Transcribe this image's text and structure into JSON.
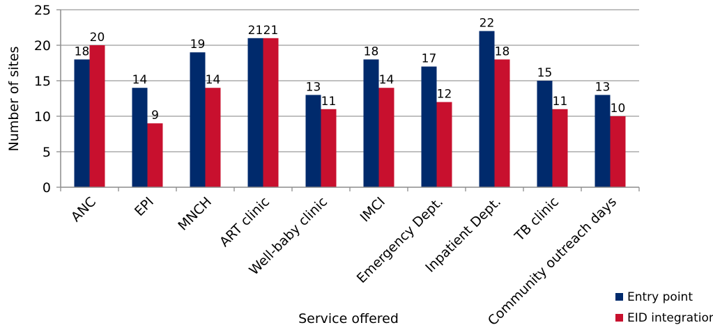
{
  "chart_data": {
    "type": "bar",
    "title": "",
    "xlabel": "Service offered",
    "ylabel": "Number of sites",
    "ylim": [
      0,
      25
    ],
    "yticks": [
      0,
      5,
      10,
      15,
      20,
      25
    ],
    "grid": true,
    "legend_position": "bottom-right",
    "categories": [
      "ANC",
      "EPI",
      "MNCH",
      "ART clinic",
      "Well-baby clinic",
      "IMCI",
      "Emergency Dept.",
      "Inpatient Dept.",
      "TB clinic",
      "Community outreach days"
    ],
    "series": [
      {
        "name": "Entry point",
        "color": "#002a6c",
        "values": [
          18,
          14,
          19,
          21,
          13,
          18,
          17,
          22,
          15,
          13
        ]
      },
      {
        "name": "EID integration",
        "color": "#c8102e",
        "values": [
          20,
          9,
          14,
          21,
          11,
          14,
          12,
          18,
          11,
          10
        ]
      }
    ]
  }
}
